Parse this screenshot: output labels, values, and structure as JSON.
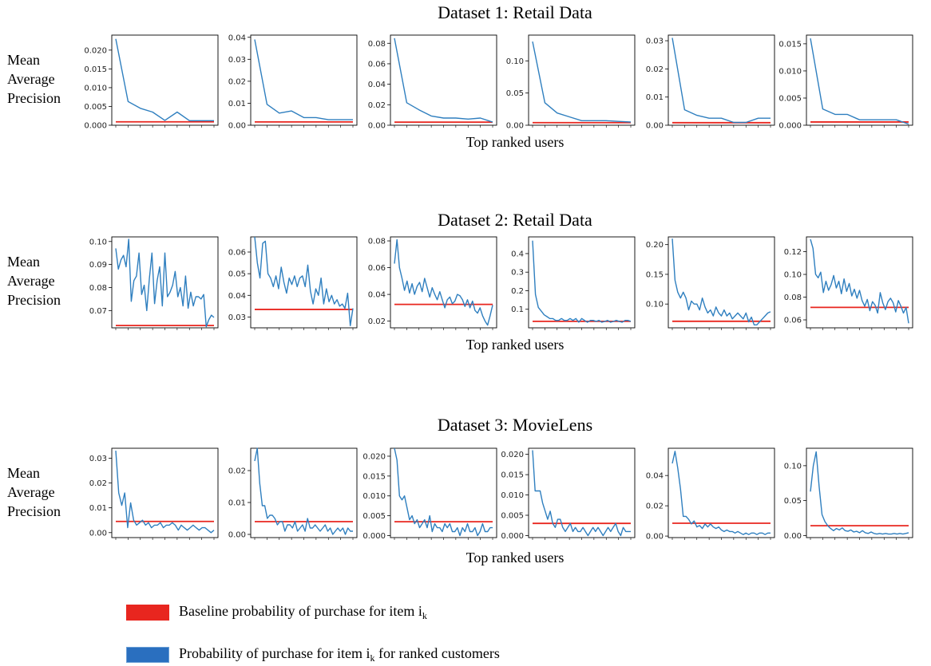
{
  "colors": {
    "baseline": "#e8261f",
    "model": "#2f7fbf",
    "legend_model": "#2a6fbf"
  },
  "rows": [
    {
      "title": "Dataset 1: Retail Data",
      "ylabel": [
        "Mean",
        "Average",
        "Precision"
      ],
      "xlabel": "Top ranked users"
    },
    {
      "title": "Dataset 2: Retail Data",
      "ylabel": [
        "Mean",
        "Average",
        "Precision"
      ],
      "xlabel": "Top ranked users"
    },
    {
      "title": "Dataset 3: MovieLens",
      "ylabel": [
        "Mean",
        "Average",
        "Precision"
      ],
      "xlabel": "Top ranked users"
    }
  ],
  "legend": {
    "baseline_label": "Baseline probability of purchase for item i",
    "model_label": "Probability of purchase for item i",
    "model_label_suffix": " for ranked customers",
    "subscript": "k"
  },
  "chart_data": [
    {
      "type": "line",
      "row": 0,
      "ylim": [
        0,
        0.024
      ],
      "ticks": [
        0.0,
        0.005,
        0.01,
        0.015,
        0.02
      ],
      "tick_labels": [
        "0.000",
        "0.005",
        "0.010",
        "0.015",
        "0.020"
      ],
      "baseline": 0.0009,
      "series": [
        {
          "values": [
            0.023,
            0.0063,
            0.0045,
            0.0035,
            0.0013,
            0.0035,
            0.0012,
            0.0012,
            0.0012
          ]
        }
      ]
    },
    {
      "type": "line",
      "row": 0,
      "ylim": [
        0,
        0.041
      ],
      "ticks": [
        0.0,
        0.01,
        0.02,
        0.03,
        0.04
      ],
      "tick_labels": [
        "0.00",
        "0.01",
        "0.02",
        "0.03",
        "0.04"
      ],
      "baseline": 0.0015,
      "series": [
        {
          "values": [
            0.039,
            0.0095,
            0.0055,
            0.0065,
            0.0035,
            0.0035,
            0.0025,
            0.0025,
            0.0025
          ]
        }
      ]
    },
    {
      "type": "line",
      "row": 0,
      "ylim": [
        0,
        0.088
      ],
      "ticks": [
        0.0,
        0.02,
        0.04,
        0.06,
        0.08
      ],
      "tick_labels": [
        "0.00",
        "0.02",
        "0.04",
        "0.06",
        "0.08"
      ],
      "baseline": 0.003,
      "series": [
        {
          "values": [
            0.085,
            0.022,
            0.015,
            0.009,
            0.007,
            0.007,
            0.006,
            0.007,
            0.003
          ]
        }
      ]
    },
    {
      "type": "line",
      "row": 0,
      "ylim": [
        0,
        0.14
      ],
      "ticks": [
        0.0,
        0.05,
        0.1
      ],
      "tick_labels": [
        "0.00",
        "0.05",
        "0.10"
      ],
      "baseline": 0.004,
      "series": [
        {
          "values": [
            0.13,
            0.035,
            0.019,
            0.013,
            0.007,
            0.007,
            0.007,
            0.006,
            0.005
          ]
        }
      ]
    },
    {
      "type": "line",
      "row": 0,
      "ylim": [
        0,
        0.032
      ],
      "ticks": [
        0.0,
        0.01,
        0.02,
        0.03
      ],
      "tick_labels": [
        "0.00",
        "0.01",
        "0.02",
        "0.03"
      ],
      "baseline": 0.0009,
      "series": [
        {
          "values": [
            0.031,
            0.0055,
            0.0035,
            0.0025,
            0.0025,
            0.001,
            0.001,
            0.0025,
            0.0025
          ]
        }
      ]
    },
    {
      "type": "line",
      "row": 0,
      "ylim": [
        0,
        0.0166
      ],
      "ticks": [
        0.0,
        0.005,
        0.01,
        0.015
      ],
      "tick_labels": [
        "0.000",
        "0.005",
        "0.010",
        "0.015"
      ],
      "baseline": 0.0006,
      "series": [
        {
          "values": [
            0.016,
            0.003,
            0.002,
            0.002,
            0.001,
            0.001,
            0.001,
            0.001,
            0.0002
          ]
        }
      ]
    },
    {
      "type": "line",
      "row": 1,
      "ylim": [
        0.0625,
        0.102
      ],
      "ticks": [
        0.07,
        0.08,
        0.09,
        0.1
      ],
      "tick_labels": [
        "0.07",
        "0.08",
        "0.09",
        "0.10"
      ],
      "baseline": 0.0635,
      "series": [
        {
          "values": [
            0.097,
            0.088,
            0.092,
            0.094,
            0.089,
            0.101,
            0.074,
            0.083,
            0.085,
            0.095,
            0.077,
            0.081,
            0.07,
            0.084,
            0.095,
            0.073,
            0.083,
            0.089,
            0.072,
            0.095,
            0.076,
            0.078,
            0.081,
            0.087,
            0.076,
            0.08,
            0.072,
            0.085,
            0.071,
            0.078,
            0.072,
            0.076,
            0.076,
            0.075,
            0.077,
            0.063,
            0.066,
            0.068,
            0.067
          ]
        }
      ]
    },
    {
      "type": "line",
      "row": 1,
      "ylim": [
        0.025,
        0.067
      ],
      "ticks": [
        0.03,
        0.04,
        0.05,
        0.06
      ],
      "tick_labels": [
        "0.03",
        "0.04",
        "0.05",
        "0.06"
      ],
      "baseline": 0.0335,
      "series": [
        {
          "values": [
            0.067,
            0.055,
            0.048,
            0.064,
            0.065,
            0.05,
            0.048,
            0.044,
            0.049,
            0.043,
            0.053,
            0.046,
            0.041,
            0.048,
            0.045,
            0.049,
            0.044,
            0.048,
            0.049,
            0.044,
            0.054,
            0.042,
            0.036,
            0.043,
            0.04,
            0.048,
            0.036,
            0.043,
            0.037,
            0.04,
            0.036,
            0.038,
            0.035,
            0.036,
            0.034,
            0.041,
            0.026,
            0.034
          ]
        }
      ]
    },
    {
      "type": "line",
      "row": 1,
      "ylim": [
        0.015,
        0.083
      ],
      "ticks": [
        0.02,
        0.04,
        0.06,
        0.08
      ],
      "tick_labels": [
        "0.02",
        "0.04",
        "0.06",
        "0.08"
      ],
      "baseline": 0.0325,
      "series": [
        {
          "values": [
            0.063,
            0.081,
            0.06,
            0.052,
            0.043,
            0.05,
            0.041,
            0.048,
            0.04,
            0.046,
            0.049,
            0.042,
            0.052,
            0.045,
            0.038,
            0.045,
            0.04,
            0.036,
            0.042,
            0.036,
            0.03,
            0.036,
            0.038,
            0.033,
            0.035,
            0.04,
            0.039,
            0.036,
            0.031,
            0.036,
            0.03,
            0.035,
            0.028,
            0.026,
            0.03,
            0.024,
            0.02,
            0.017,
            0.024,
            0.032
          ]
        }
      ]
    },
    {
      "type": "line",
      "row": 1,
      "ylim": [
        0.0,
        0.49
      ],
      "ticks": [
        0.1,
        0.2,
        0.3,
        0.4
      ],
      "tick_labels": [
        "0.1",
        "0.2",
        "0.3",
        "0.4"
      ],
      "baseline": 0.035,
      "series": [
        {
          "values": [
            0.47,
            0.18,
            0.11,
            0.09,
            0.07,
            0.06,
            0.05,
            0.05,
            0.04,
            0.04,
            0.05,
            0.04,
            0.04,
            0.05,
            0.04,
            0.05,
            0.03,
            0.05,
            0.04,
            0.03,
            0.04,
            0.04,
            0.035,
            0.04,
            0.03,
            0.035,
            0.04,
            0.03,
            0.035,
            0.04,
            0.035,
            0.03,
            0.04,
            0.04,
            0.035
          ]
        }
      ]
    },
    {
      "type": "line",
      "row": 1,
      "ylim": [
        0.06,
        0.213
      ],
      "ticks": [
        0.1,
        0.15,
        0.2
      ],
      "tick_labels": [
        "0.10",
        "0.15",
        "0.20"
      ],
      "baseline": 0.071,
      "series": [
        {
          "values": [
            0.21,
            0.14,
            0.12,
            0.11,
            0.12,
            0.11,
            0.09,
            0.105,
            0.1,
            0.1,
            0.09,
            0.11,
            0.095,
            0.085,
            0.09,
            0.08,
            0.095,
            0.085,
            0.08,
            0.09,
            0.08,
            0.085,
            0.075,
            0.08,
            0.085,
            0.08,
            0.075,
            0.085,
            0.07,
            0.078,
            0.065,
            0.065,
            0.07,
            0.075,
            0.08,
            0.085,
            0.087
          ]
        }
      ]
    },
    {
      "type": "line",
      "row": 1,
      "ylim": [
        0.053,
        0.133
      ],
      "ticks": [
        0.06,
        0.08,
        0.1,
        0.12
      ],
      "tick_labels": [
        "0.06",
        "0.08",
        "0.10",
        "0.12"
      ],
      "baseline": 0.071,
      "series": [
        {
          "values": [
            0.131,
            0.123,
            0.1,
            0.097,
            0.102,
            0.084,
            0.094,
            0.086,
            0.091,
            0.099,
            0.088,
            0.094,
            0.083,
            0.096,
            0.085,
            0.092,
            0.081,
            0.087,
            0.079,
            0.086,
            0.077,
            0.072,
            0.078,
            0.068,
            0.076,
            0.073,
            0.066,
            0.084,
            0.075,
            0.069,
            0.076,
            0.079,
            0.075,
            0.067,
            0.077,
            0.072,
            0.066,
            0.071,
            0.057
          ]
        }
      ]
    },
    {
      "type": "line",
      "row": 2,
      "ylim": [
        -0.002,
        0.034
      ],
      "ticks": [
        0.0,
        0.01,
        0.02,
        0.03
      ],
      "tick_labels": [
        "0.00",
        "0.01",
        "0.02",
        "0.03"
      ],
      "baseline": 0.0045,
      "series": [
        {
          "values": [
            0.033,
            0.016,
            0.011,
            0.016,
            0.002,
            0.012,
            0.005,
            0.003,
            0.004,
            0.005,
            0.003,
            0.004,
            0.002,
            0.003,
            0.003,
            0.004,
            0.002,
            0.003,
            0.003,
            0.004,
            0.003,
            0.001,
            0.003,
            0.002,
            0.001,
            0.002,
            0.003,
            0.002,
            0.001,
            0.002,
            0.002,
            0.001,
            0.0,
            0.001
          ]
        }
      ]
    },
    {
      "type": "line",
      "row": 2,
      "ylim": [
        -0.001,
        0.027
      ],
      "ticks": [
        0.0,
        0.01,
        0.02
      ],
      "tick_labels": [
        "0.00",
        "0.01",
        "0.02"
      ],
      "baseline": 0.004,
      "series": [
        {
          "values": [
            0.023,
            0.027,
            0.016,
            0.009,
            0.009,
            0.005,
            0.006,
            0.006,
            0.005,
            0.003,
            0.004,
            0.004,
            0.001,
            0.003,
            0.003,
            0.002,
            0.004,
            0.001,
            0.002,
            0.003,
            0.001,
            0.005,
            0.002,
            0.002,
            0.003,
            0.002,
            0.001,
            0.002,
            0.003,
            0.001,
            0.002,
            0.0,
            0.001,
            0.002,
            0.001,
            0.002,
            0.0,
            0.002,
            0.001,
            0.001
          ]
        }
      ]
    },
    {
      "type": "line",
      "row": 2,
      "ylim": [
        -0.0005,
        0.022
      ],
      "ticks": [
        0.0,
        0.005,
        0.01,
        0.015,
        0.02
      ],
      "tick_labels": [
        "0.000",
        "0.005",
        "0.010",
        "0.015",
        "0.020"
      ],
      "baseline": 0.0035,
      "series": [
        {
          "values": [
            0.022,
            0.019,
            0.01,
            0.009,
            0.01,
            0.007,
            0.004,
            0.005,
            0.003,
            0.004,
            0.002,
            0.003,
            0.004,
            0.002,
            0.005,
            0.001,
            0.003,
            0.002,
            0.002,
            0.001,
            0.003,
            0.002,
            0.003,
            0.001,
            0.001,
            0.002,
            0.0,
            0.002,
            0.001,
            0.003,
            0.001,
            0.001,
            0.002,
            0.0,
            0.001,
            0.003,
            0.001,
            0.001,
            0.002,
            0.002
          ]
        }
      ]
    },
    {
      "type": "line",
      "row": 2,
      "ylim": [
        -0.0005,
        0.0215
      ],
      "ticks": [
        0.0,
        0.005,
        0.01,
        0.015,
        0.02
      ],
      "tick_labels": [
        "0.000",
        "0.005",
        "0.010",
        "0.015",
        "0.020"
      ],
      "baseline": 0.003,
      "series": [
        {
          "values": [
            0.021,
            0.011,
            0.011,
            0.011,
            0.008,
            0.006,
            0.004,
            0.006,
            0.003,
            0.002,
            0.004,
            0.004,
            0.002,
            0.001,
            0.002,
            0.003,
            0.001,
            0.002,
            0.001,
            0.001,
            0.002,
            0.001,
            0.0,
            0.001,
            0.002,
            0.001,
            0.002,
            0.001,
            0.0,
            0.001,
            0.002,
            0.001,
            0.002,
            0.003,
            0.001,
            0.0,
            0.002,
            0.001,
            0.001,
            0.001
          ]
        }
      ]
    },
    {
      "type": "line",
      "row": 2,
      "ylim": [
        -0.001,
        0.058
      ],
      "ticks": [
        0.0,
        0.02,
        0.04
      ],
      "tick_labels": [
        "0.00",
        "0.02",
        "0.04"
      ],
      "baseline": 0.0085,
      "series": [
        {
          "values": [
            0.048,
            0.056,
            0.045,
            0.031,
            0.013,
            0.013,
            0.011,
            0.008,
            0.01,
            0.006,
            0.007,
            0.005,
            0.008,
            0.006,
            0.008,
            0.006,
            0.005,
            0.006,
            0.004,
            0.003,
            0.004,
            0.003,
            0.003,
            0.002,
            0.003,
            0.002,
            0.001,
            0.002,
            0.001,
            0.002,
            0.002,
            0.001,
            0.002,
            0.002,
            0.001,
            0.002,
            0.002
          ]
        }
      ]
    },
    {
      "type": "line",
      "row": 2,
      "ylim": [
        -0.003,
        0.125
      ],
      "ticks": [
        0.0,
        0.05,
        0.1
      ],
      "tick_labels": [
        "0.00",
        "0.05",
        "0.10"
      ],
      "baseline": 0.014,
      "series": [
        {
          "values": [
            0.063,
            0.1,
            0.12,
            0.07,
            0.03,
            0.02,
            0.014,
            0.01,
            0.007,
            0.01,
            0.008,
            0.011,
            0.007,
            0.006,
            0.008,
            0.005,
            0.006,
            0.004,
            0.007,
            0.004,
            0.003,
            0.005,
            0.003,
            0.002,
            0.003,
            0.002,
            0.003,
            0.002,
            0.002,
            0.003,
            0.002,
            0.003,
            0.002,
            0.003,
            0.004
          ]
        }
      ]
    }
  ]
}
